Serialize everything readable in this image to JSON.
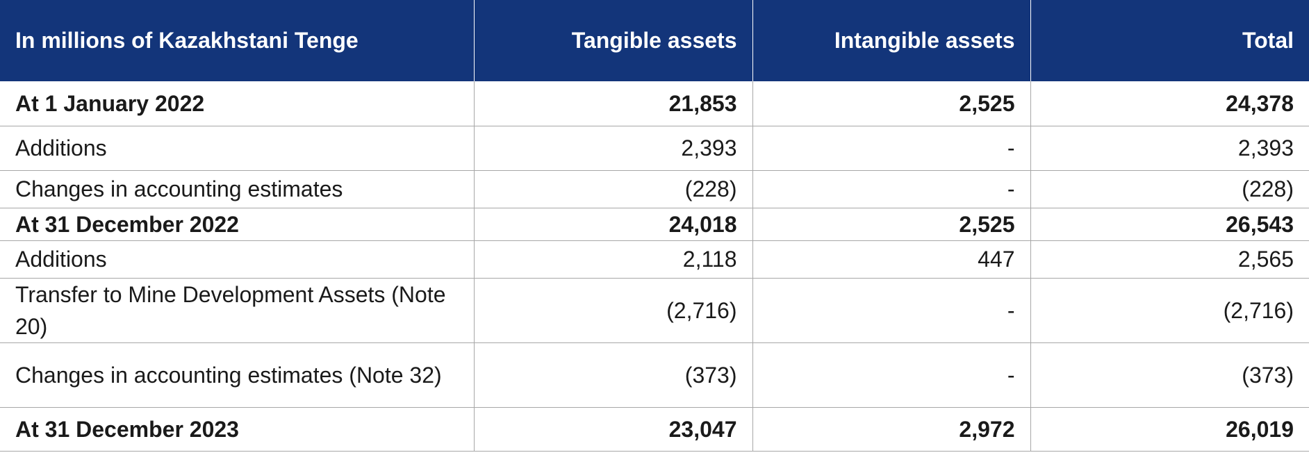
{
  "table": {
    "headers": [
      "In millions of Kazakhstani Tenge",
      "Tangible assets",
      "Intangible assets",
      "Total"
    ],
    "rows": [
      {
        "label": "At 1 January 2022",
        "tangible": "21,853",
        "intangible": "2,525",
        "total": "24,378",
        "bold": true
      },
      {
        "label": "Additions",
        "tangible": "2,393",
        "intangible": "-",
        "total": "2,393",
        "bold": false
      },
      {
        "label": "Changes in accounting estimates",
        "tangible": "(228)",
        "intangible": "-",
        "total": "(228)",
        "bold": false
      },
      {
        "label": "At 31 December 2022",
        "tangible": "24,018",
        "intangible": "2,525",
        "total": "26,543",
        "bold": true
      },
      {
        "label": "Additions",
        "tangible": "2,118",
        "intangible": "447",
        "total": "2,565",
        "bold": false
      },
      {
        "label": "Transfer to Mine Development Assets (Note 20)",
        "tangible": "(2,716)",
        "intangible": "-",
        "total": "(2,716)",
        "bold": false
      },
      {
        "label": "Changes in accounting estimates (Note 32)",
        "tangible": "(373)",
        "intangible": "-",
        "total": "(373)",
        "bold": false
      },
      {
        "label": "At 31 December 2023",
        "tangible": "23,047",
        "intangible": "2,972",
        "total": "26,019",
        "bold": true
      }
    ]
  },
  "colors": {
    "header_background": "#13357a",
    "header_text": "#ffffff",
    "grid_line": "#a7a7a7"
  }
}
